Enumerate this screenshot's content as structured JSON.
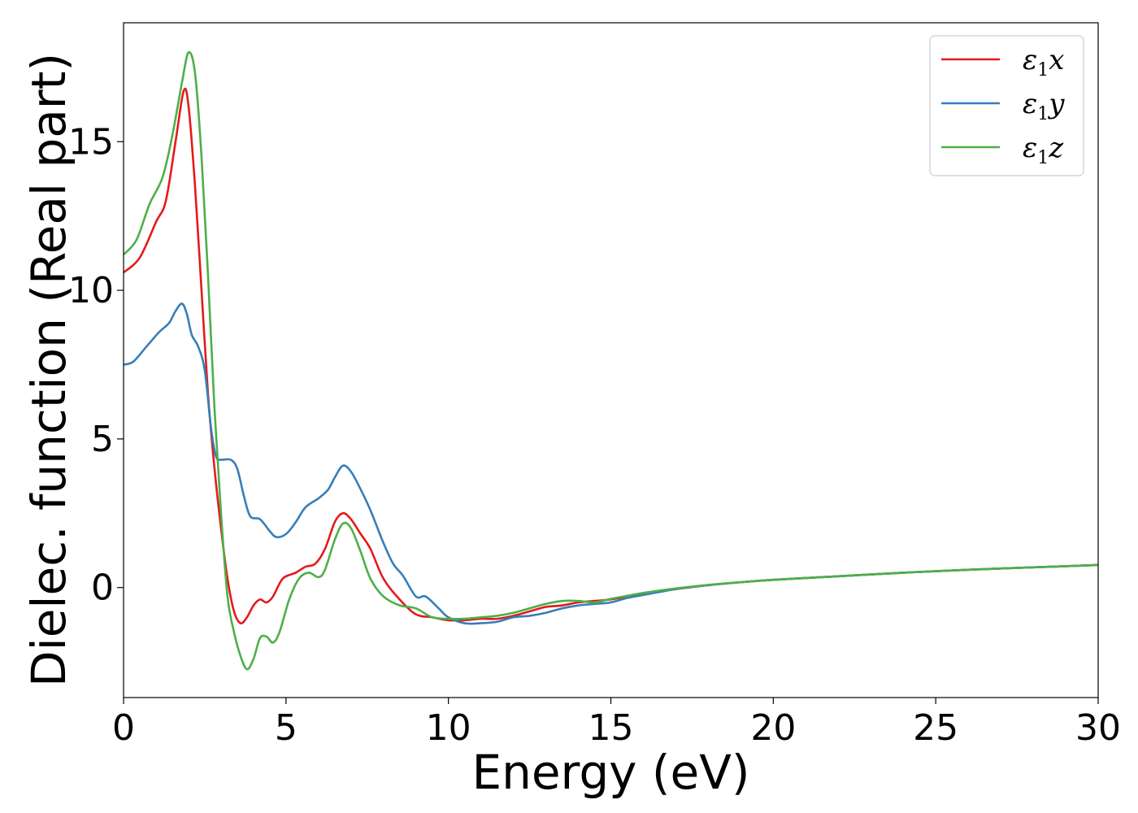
{
  "chart_data": {
    "type": "line",
    "xlabel": "Energy (eV)",
    "ylabel": "Dielec. function (Real part)",
    "xlim": [
      0,
      30
    ],
    "ylim": [
      -3.7,
      19.0
    ],
    "xticks": [
      0,
      5,
      10,
      15,
      20,
      25,
      30
    ],
    "xtick_labels": [
      "0",
      "5",
      "10",
      "15",
      "20",
      "25",
      "30"
    ],
    "yticks": [
      0,
      5,
      10,
      15
    ],
    "ytick_labels": [
      "0",
      "5",
      "10",
      "15"
    ],
    "grid": false,
    "legend_position": "top-right",
    "series": [
      {
        "name": "ε1x",
        "legend_base": "ε",
        "legend_sub": "1",
        "legend_var": "x",
        "color": "#e41a1c",
        "points": [
          [
            0,
            10.6
          ],
          [
            0.5,
            11.1
          ],
          [
            1.0,
            12.3
          ],
          [
            1.3,
            13.0
          ],
          [
            1.6,
            15.0
          ],
          [
            1.85,
            16.7
          ],
          [
            2.0,
            16.2
          ],
          [
            2.2,
            13.5
          ],
          [
            2.4,
            10.0
          ],
          [
            2.6,
            6.5
          ],
          [
            2.8,
            4.0
          ],
          [
            3.0,
            2.0
          ],
          [
            3.2,
            0.3
          ],
          [
            3.4,
            -0.8
          ],
          [
            3.6,
            -1.2
          ],
          [
            3.8,
            -1.0
          ],
          [
            4.0,
            -0.6
          ],
          [
            4.2,
            -0.4
          ],
          [
            4.4,
            -0.5
          ],
          [
            4.6,
            -0.3
          ],
          [
            4.9,
            0.3
          ],
          [
            5.3,
            0.5
          ],
          [
            5.6,
            0.7
          ],
          [
            5.9,
            0.8
          ],
          [
            6.2,
            1.3
          ],
          [
            6.5,
            2.2
          ],
          [
            6.75,
            2.5
          ],
          [
            7.0,
            2.3
          ],
          [
            7.3,
            1.8
          ],
          [
            7.6,
            1.3
          ],
          [
            8.0,
            0.3
          ],
          [
            8.5,
            -0.4
          ],
          [
            9.0,
            -0.9
          ],
          [
            9.5,
            -1.0
          ],
          [
            10.0,
            -1.1
          ],
          [
            10.5,
            -1.1
          ],
          [
            11.0,
            -1.05
          ],
          [
            11.5,
            -1.05
          ],
          [
            12.0,
            -0.95
          ],
          [
            12.5,
            -0.8
          ],
          [
            13.0,
            -0.65
          ],
          [
            13.5,
            -0.6
          ],
          [
            14.0,
            -0.5
          ],
          [
            14.5,
            -0.45
          ],
          [
            15.0,
            -0.4
          ],
          [
            15.5,
            -0.3
          ],
          [
            16.0,
            -0.2
          ],
          [
            17.0,
            -0.05
          ],
          [
            18.0,
            0.08
          ],
          [
            19.0,
            0.18
          ],
          [
            20.0,
            0.26
          ],
          [
            22.0,
            0.38
          ],
          [
            24.0,
            0.5
          ],
          [
            26.0,
            0.6
          ],
          [
            28.0,
            0.68
          ],
          [
            30.0,
            0.76
          ]
        ]
      },
      {
        "name": "ε1y",
        "legend_base": "ε",
        "legend_sub": "1",
        "legend_var": "y",
        "color": "#377eb8",
        "points": [
          [
            0,
            7.5
          ],
          [
            0.3,
            7.6
          ],
          [
            0.7,
            8.1
          ],
          [
            1.1,
            8.6
          ],
          [
            1.4,
            8.9
          ],
          [
            1.6,
            9.3
          ],
          [
            1.8,
            9.55
          ],
          [
            1.95,
            9.2
          ],
          [
            2.1,
            8.5
          ],
          [
            2.3,
            8.1
          ],
          [
            2.5,
            7.3
          ],
          [
            2.7,
            5.3
          ],
          [
            2.85,
            4.4
          ],
          [
            3.0,
            4.3
          ],
          [
            3.3,
            4.3
          ],
          [
            3.5,
            4.0
          ],
          [
            3.7,
            3.1
          ],
          [
            3.9,
            2.4
          ],
          [
            4.2,
            2.3
          ],
          [
            4.5,
            1.9
          ],
          [
            4.7,
            1.7
          ],
          [
            5.0,
            1.8
          ],
          [
            5.3,
            2.2
          ],
          [
            5.6,
            2.7
          ],
          [
            6.0,
            3.0
          ],
          [
            6.3,
            3.3
          ],
          [
            6.5,
            3.7
          ],
          [
            6.75,
            4.1
          ],
          [
            7.0,
            3.9
          ],
          [
            7.3,
            3.3
          ],
          [
            7.6,
            2.6
          ],
          [
            8.0,
            1.5
          ],
          [
            8.3,
            0.8
          ],
          [
            8.6,
            0.4
          ],
          [
            9.0,
            -0.3
          ],
          [
            9.3,
            -0.3
          ],
          [
            9.7,
            -0.7
          ],
          [
            10.0,
            -1.0
          ],
          [
            10.5,
            -1.2
          ],
          [
            11.0,
            -1.2
          ],
          [
            11.5,
            -1.15
          ],
          [
            12.0,
            -1.0
          ],
          [
            12.5,
            -0.95
          ],
          [
            13.0,
            -0.85
          ],
          [
            13.5,
            -0.7
          ],
          [
            14.0,
            -0.6
          ],
          [
            14.5,
            -0.55
          ],
          [
            15.0,
            -0.5
          ],
          [
            15.5,
            -0.35
          ],
          [
            16.0,
            -0.25
          ],
          [
            17.0,
            -0.05
          ],
          [
            18.0,
            0.08
          ],
          [
            19.0,
            0.18
          ],
          [
            20.0,
            0.26
          ],
          [
            22.0,
            0.38
          ],
          [
            24.0,
            0.5
          ],
          [
            26.0,
            0.6
          ],
          [
            28.0,
            0.68
          ],
          [
            30.0,
            0.76
          ]
        ]
      },
      {
        "name": "ε1z",
        "legend_base": "ε",
        "legend_sub": "1",
        "legend_var": "z",
        "color": "#4daf4a",
        "points": [
          [
            0,
            11.2
          ],
          [
            0.4,
            11.7
          ],
          [
            0.8,
            12.9
          ],
          [
            1.2,
            13.8
          ],
          [
            1.5,
            15.2
          ],
          [
            1.8,
            17.0
          ],
          [
            2.0,
            18.0
          ],
          [
            2.2,
            17.3
          ],
          [
            2.4,
            14.5
          ],
          [
            2.6,
            10.5
          ],
          [
            2.8,
            6.0
          ],
          [
            3.0,
            2.5
          ],
          [
            3.2,
            -0.3
          ],
          [
            3.4,
            -1.5
          ],
          [
            3.6,
            -2.3
          ],
          [
            3.8,
            -2.75
          ],
          [
            4.0,
            -2.4
          ],
          [
            4.2,
            -1.7
          ],
          [
            4.4,
            -1.65
          ],
          [
            4.6,
            -1.85
          ],
          [
            4.8,
            -1.5
          ],
          [
            5.1,
            -0.4
          ],
          [
            5.4,
            0.3
          ],
          [
            5.7,
            0.5
          ],
          [
            6.0,
            0.35
          ],
          [
            6.2,
            0.6
          ],
          [
            6.5,
            1.6
          ],
          [
            6.75,
            2.15
          ],
          [
            7.0,
            2.0
          ],
          [
            7.3,
            1.2
          ],
          [
            7.6,
            0.3
          ],
          [
            8.0,
            -0.3
          ],
          [
            8.5,
            -0.6
          ],
          [
            9.0,
            -0.7
          ],
          [
            9.5,
            -1.0
          ],
          [
            10.0,
            -1.05
          ],
          [
            10.5,
            -1.05
          ],
          [
            11.0,
            -1.0
          ],
          [
            11.5,
            -0.95
          ],
          [
            12.0,
            -0.85
          ],
          [
            12.5,
            -0.7
          ],
          [
            13.0,
            -0.55
          ],
          [
            13.5,
            -0.45
          ],
          [
            14.0,
            -0.45
          ],
          [
            14.5,
            -0.5
          ],
          [
            15.0,
            -0.38
          ],
          [
            15.5,
            -0.28
          ],
          [
            16.0,
            -0.18
          ],
          [
            17.0,
            -0.03
          ],
          [
            18.0,
            0.09
          ],
          [
            19.0,
            0.18
          ],
          [
            20.0,
            0.26
          ],
          [
            22.0,
            0.38
          ],
          [
            24.0,
            0.5
          ],
          [
            26.0,
            0.6
          ],
          [
            28.0,
            0.68
          ],
          [
            30.0,
            0.76
          ]
        ]
      }
    ]
  }
}
